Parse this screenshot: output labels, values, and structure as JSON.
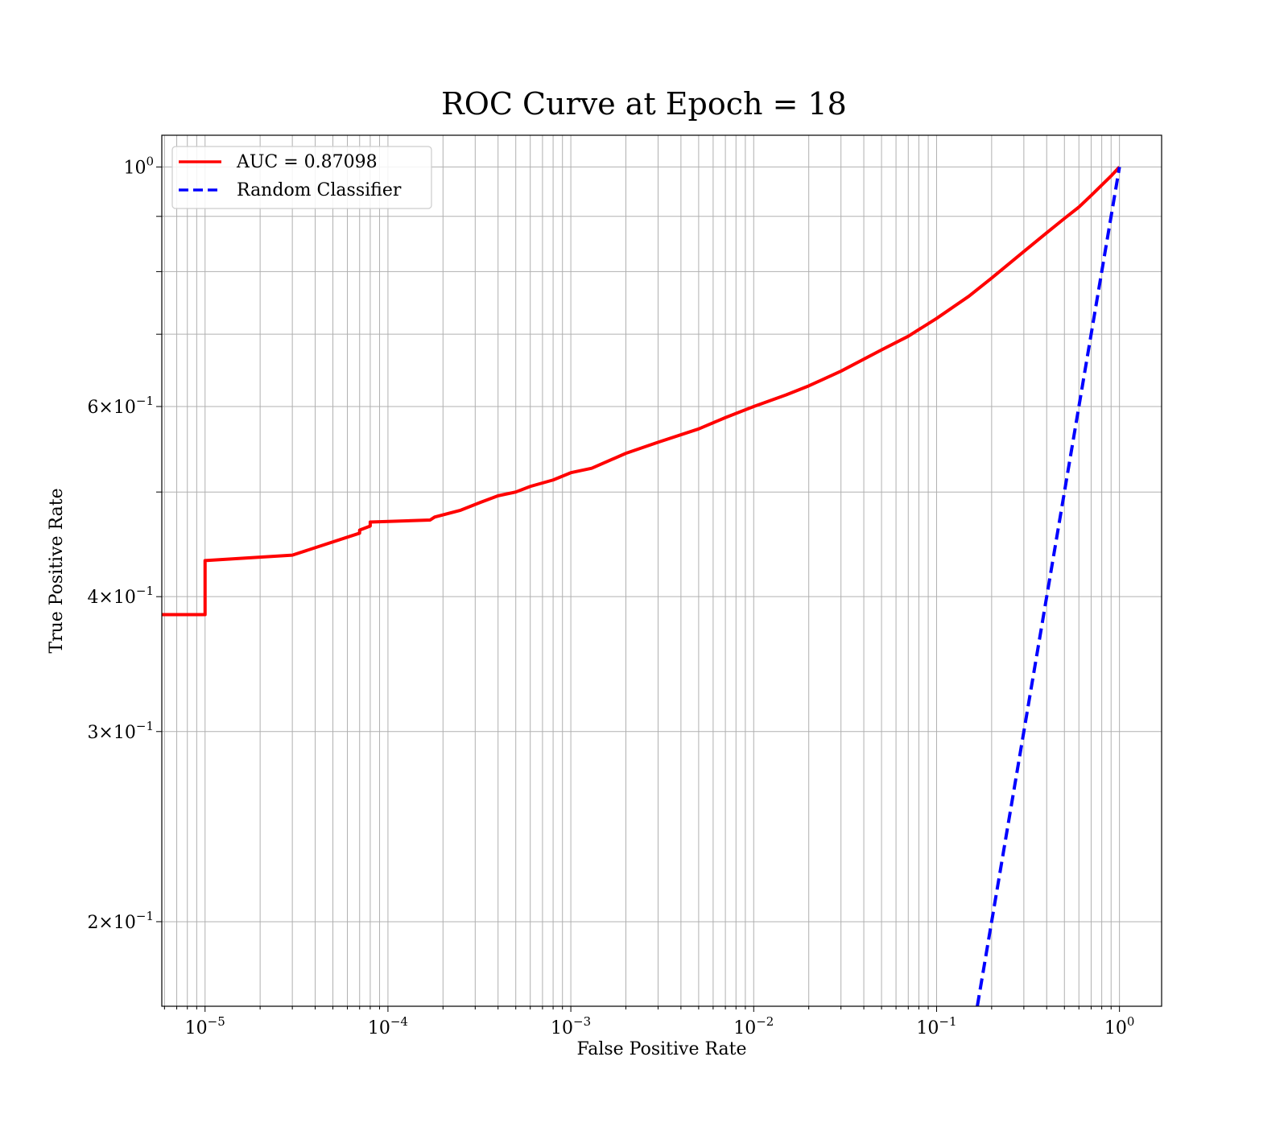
{
  "chart_data": {
    "type": "line",
    "title": "ROC Curve at Epoch = 18",
    "xlabel": "False Positive Rate",
    "ylabel": "True Positive Rate",
    "xscale": "log",
    "yscale": "log",
    "xlim": [
      5.8e-06,
      1.7
    ],
    "ylim": [
      0.167,
      1.07
    ],
    "grid": true,
    "legend_position": "top-left",
    "x_ticks": [
      {
        "value": 1e-05,
        "base": "10",
        "exp": "−5"
      },
      {
        "value": 0.0001,
        "base": "10",
        "exp": "−4"
      },
      {
        "value": 0.001,
        "base": "10",
        "exp": "−3"
      },
      {
        "value": 0.01,
        "base": "10",
        "exp": "−2"
      },
      {
        "value": 0.1,
        "base": "10",
        "exp": "−1"
      },
      {
        "value": 1,
        "base": "10",
        "exp": "0"
      }
    ],
    "y_ticks": [
      {
        "value": 1,
        "base": "10",
        "exp": "0"
      },
      {
        "value": 0.6,
        "base": "6×10",
        "exp": "−1"
      },
      {
        "value": 0.4,
        "base": "4×10",
        "exp": "−1"
      },
      {
        "value": 0.3,
        "base": "3×10",
        "exp": "−1"
      },
      {
        "value": 0.2,
        "base": "2×10",
        "exp": "−1"
      }
    ],
    "y_minor_grid": [
      0.5,
      0.7,
      0.8,
      0.9
    ],
    "series": [
      {
        "name": "AUC = 0.87098",
        "color": "#ff0000",
        "style": "solid",
        "x": [
          5.8e-06,
          1e-05,
          1e-05,
          3e-05,
          7e-05,
          7e-05,
          8e-05,
          8e-05,
          0.00017,
          0.00018,
          0.00025,
          0.00032,
          0.0004,
          0.0005,
          0.0006,
          0.0008,
          0.001,
          0.0013,
          0.002,
          0.003,
          0.005,
          0.007,
          0.01,
          0.015,
          0.02,
          0.03,
          0.05,
          0.07,
          0.1,
          0.15,
          0.2,
          0.3,
          0.4,
          0.5,
          0.6,
          0.7,
          0.8,
          0.9,
          1.0
        ],
        "y": [
          0.385,
          0.385,
          0.432,
          0.437,
          0.458,
          0.461,
          0.465,
          0.469,
          0.471,
          0.474,
          0.481,
          0.489,
          0.496,
          0.5,
          0.506,
          0.513,
          0.521,
          0.526,
          0.543,
          0.556,
          0.572,
          0.586,
          0.6,
          0.615,
          0.627,
          0.647,
          0.677,
          0.697,
          0.724,
          0.759,
          0.789,
          0.835,
          0.869,
          0.896,
          0.918,
          0.941,
          0.962,
          0.981,
          1.0
        ]
      },
      {
        "name": "Random Classifier",
        "color": "#0000ff",
        "style": "dashed",
        "x": [
          0.167,
          1.0
        ],
        "y": [
          0.167,
          1.0
        ]
      }
    ]
  }
}
